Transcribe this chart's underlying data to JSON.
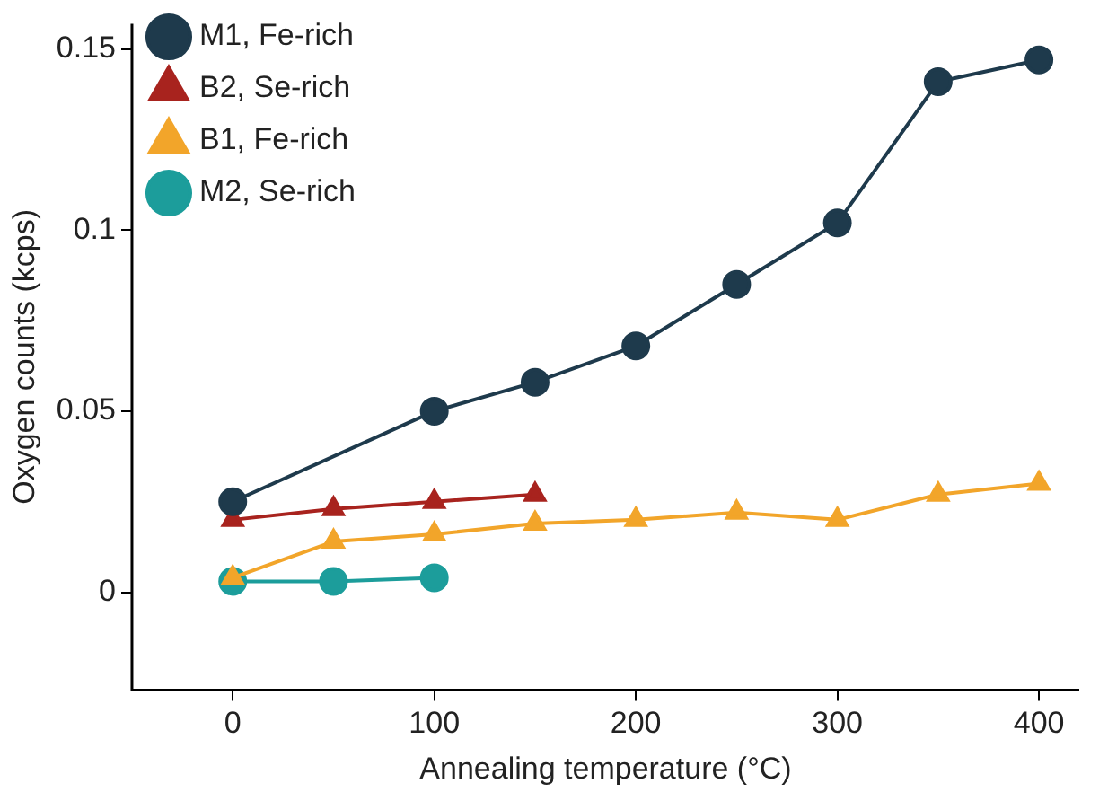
{
  "chart_data": {
    "type": "line",
    "xlabel": "Annealing temperature (°C)",
    "ylabel": "Oxygen counts (kcps)",
    "xlim": [
      -50,
      420
    ],
    "xticks": [
      0,
      100,
      200,
      300,
      400
    ],
    "ylim": [
      -0.027,
      0.157
    ],
    "yticks": [
      0,
      0.05,
      0.1,
      0.15
    ],
    "grid": false,
    "legend": "top left",
    "line_style": "solid",
    "series": [
      {
        "name": "M1, Fe-rich",
        "color": "#1e3a4c",
        "marker": "circle",
        "x": [
          0,
          100,
          150,
          200,
          250,
          300,
          350,
          400
        ],
        "values": [
          0.025,
          0.05,
          0.058,
          0.068,
          0.085,
          0.102,
          0.141,
          0.147
        ]
      },
      {
        "name": "B2, Se-rich",
        "color": "#a8231e",
        "marker": "triangle",
        "x": [
          0,
          50,
          100,
          150
        ],
        "values": [
          0.02,
          0.023,
          0.025,
          0.027
        ]
      },
      {
        "name": "B1, Fe-rich",
        "color": "#f2a52a",
        "marker": "triangle",
        "x": [
          0,
          50,
          100,
          150,
          200,
          250,
          300,
          350,
          400
        ],
        "values": [
          0.004,
          0.014,
          0.016,
          0.019,
          0.02,
          0.022,
          0.02,
          0.027,
          0.03
        ]
      },
      {
        "name": "M2, Se-rich",
        "color": "#1c9d9b",
        "marker": "circle",
        "x": [
          0,
          50,
          100
        ],
        "values": [
          0.003,
          0.003,
          0.004
        ]
      }
    ]
  }
}
